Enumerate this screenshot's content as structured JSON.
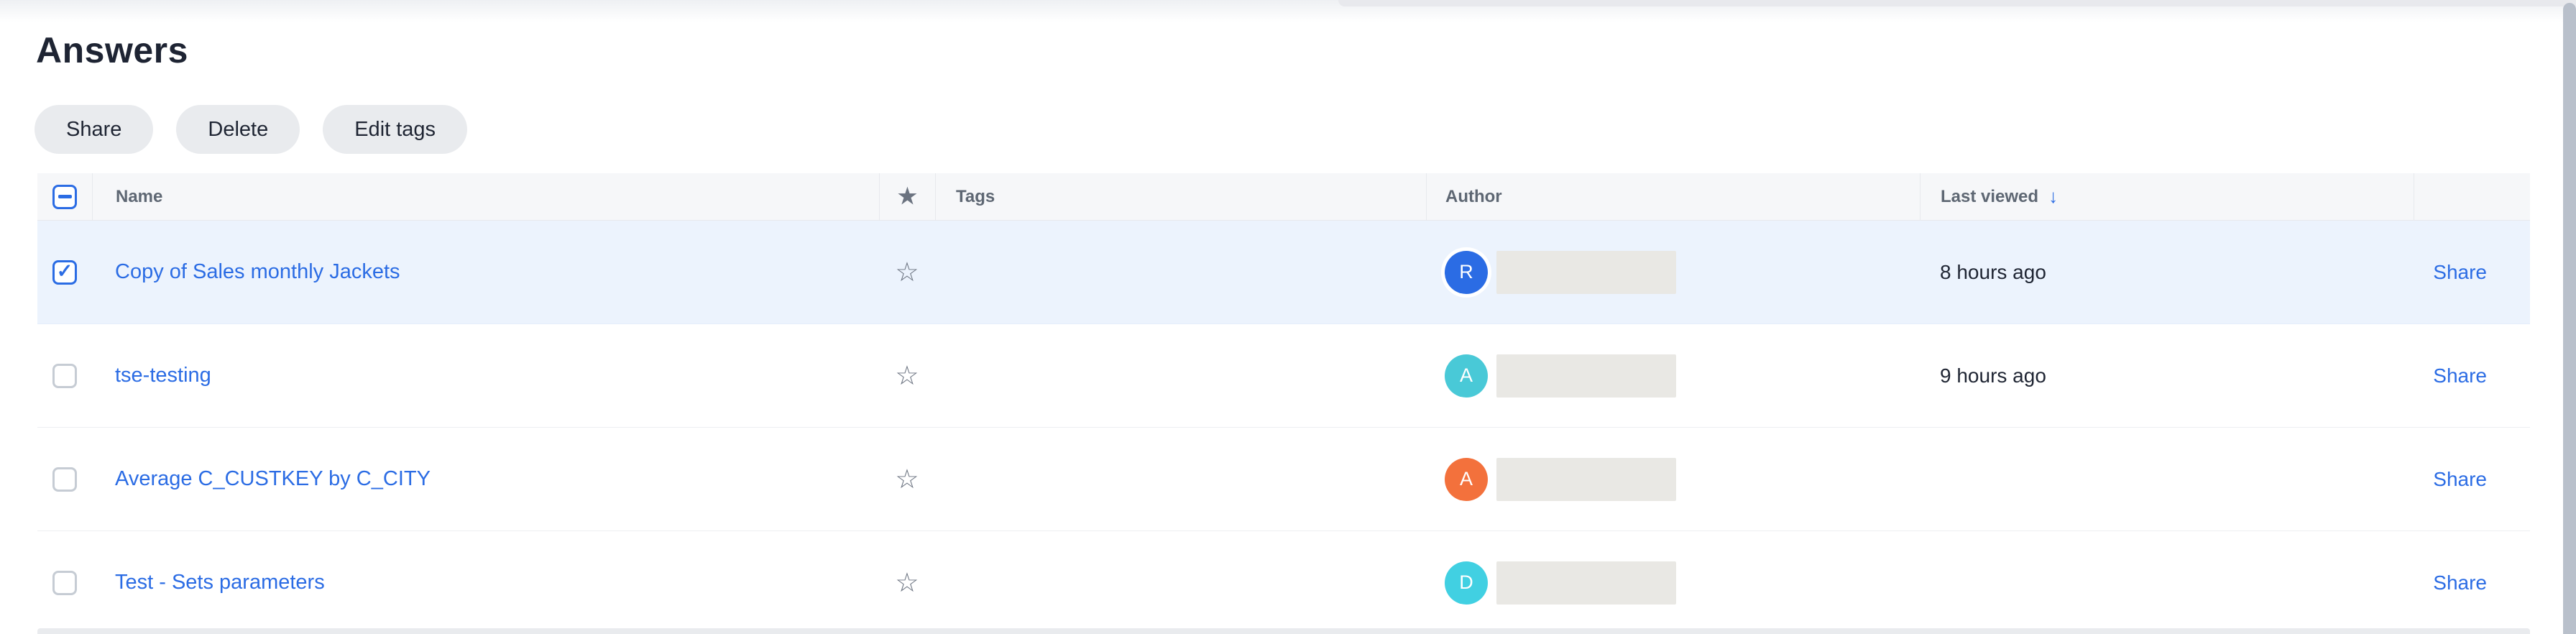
{
  "page": {
    "title": "Answers"
  },
  "toolbar": {
    "buttons": [
      {
        "id": "share",
        "label": "Share"
      },
      {
        "id": "delete",
        "label": "Delete"
      },
      {
        "id": "edit-tags",
        "label": "Edit tags"
      }
    ]
  },
  "table": {
    "select_all_state": "indeterminate",
    "columns": {
      "name": "Name",
      "tags": "Tags",
      "author": "Author",
      "last_viewed": "Last viewed"
    },
    "sort": {
      "column": "last_viewed",
      "direction": "desc"
    },
    "rows": [
      {
        "name": "Copy of Sales monthly Jackets",
        "selected": true,
        "favorite": false,
        "tags": "",
        "author_initial": "R",
        "author_color": "#2b6ce4",
        "author_name_redacted": true,
        "last_viewed": "8 hours ago",
        "action_label": "Share"
      },
      {
        "name": "tse-testing",
        "selected": false,
        "favorite": false,
        "tags": "",
        "author_initial": "A",
        "author_color": "#49c9d7",
        "author_name_redacted": true,
        "last_viewed": "9 hours ago",
        "action_label": "Share"
      },
      {
        "name": "Average C_CUSTKEY by C_CITY",
        "selected": false,
        "favorite": false,
        "tags": "",
        "author_initial": "A",
        "author_color": "#f3713c",
        "author_name_redacted": true,
        "last_viewed": "",
        "action_label": "Share"
      },
      {
        "name": "Test - Sets parameters",
        "selected": false,
        "favorite": false,
        "tags": "",
        "author_initial": "D",
        "author_color": "#41d0e2",
        "author_name_redacted": true,
        "last_viewed": "",
        "action_label": "Share"
      }
    ]
  },
  "icons": {
    "favorite_header": "★",
    "favorite_row": "☆",
    "checkmark": "✓",
    "sort_desc": "↓"
  },
  "colors": {
    "accent_blue": "#2b6ce4",
    "selected_row_bg": "#ecf3fd",
    "header_bg": "#f6f7f9",
    "button_bg": "#e9ebee",
    "scrollbar_thumb": "#b9c0cb",
    "redacted_box": "#e9e8e4"
  }
}
